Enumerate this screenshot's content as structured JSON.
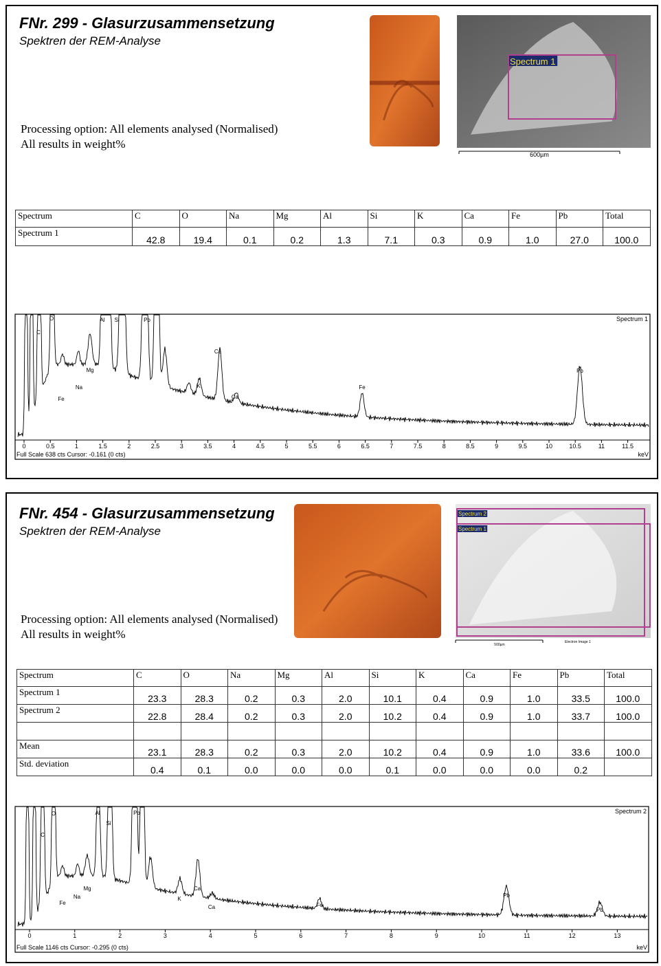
{
  "panels": [
    {
      "title": "FNr. 299 - Glasurzusammensetzung",
      "subtitle": "Spektren der REM-Analyse",
      "processing": [
        "Processing option: All elements analysed (Normalised)",
        "All results in weight%"
      ],
      "image_labels": [
        "Spectrum 1"
      ],
      "scale_label": "600µm",
      "table": {
        "header": [
          "Spectrum",
          "C",
          "O",
          "Na",
          "Mg",
          "Al",
          "Si",
          "K",
          "Ca",
          "Fe",
          "Pb",
          "Total"
        ],
        "rows": [
          [
            "Spectrum 1",
            "42.8",
            "19.4",
            "0.1",
            "0.2",
            "1.3",
            "7.1",
            "0.3",
            "0.9",
            "1.0",
            "27.0",
            "100.0"
          ]
        ]
      },
      "spectrum": {
        "label": "Spectrum 1",
        "peaks": [
          "C",
          "O",
          "Al",
          "Si",
          "Pb",
          "Mg",
          "Na",
          "Fe",
          "K",
          "Ca",
          "Ca",
          "Fe",
          "Pb"
        ],
        "ticks": [
          0,
          0.5,
          1,
          1.5,
          2,
          2.5,
          3,
          3.5,
          4,
          4.5,
          5,
          5.5,
          6,
          6.5,
          7,
          7.5,
          8,
          8.5,
          9,
          9.5,
          10,
          10.5,
          11,
          11.5
        ],
        "unit": "keV",
        "footer": "Full Scale 638 cts Cursor: -0.161  (0 cts)"
      }
    },
    {
      "title": "FNr. 454 - Glasurzusammensetzung",
      "subtitle": "Spektren der REM-Analyse",
      "processing": [
        "Processing option: All elements analysed (Normalised)",
        "All results in weight%"
      ],
      "image_labels": [
        "Spectrum 2",
        "Spectrum 1"
      ],
      "scale_label": "500µm",
      "image_caption": "Electron Image 1",
      "table": {
        "header": [
          "Spectrum",
          "C",
          "O",
          "Na",
          "Mg",
          "Al",
          "Si",
          "K",
          "Ca",
          "Fe",
          "Pb",
          "Total"
        ],
        "rows": [
          [
            "Spectrum 1",
            "23.3",
            "28.3",
            "0.2",
            "0.3",
            "2.0",
            "10.1",
            "0.4",
            "0.9",
            "1.0",
            "33.5",
            "100.0"
          ],
          [
            "Spectrum 2",
            "22.8",
            "28.4",
            "0.2",
            "0.3",
            "2.0",
            "10.2",
            "0.4",
            "0.9",
            "1.0",
            "33.7",
            "100.0"
          ],
          [
            "Mean",
            "23.1",
            "28.3",
            "0.2",
            "0.3",
            "2.0",
            "10.2",
            "0.4",
            "0.9",
            "1.0",
            "33.6",
            "100.0"
          ],
          [
            "Std. deviation",
            "0.4",
            "0.1",
            "0.0",
            "0.0",
            "0.0",
            "0.1",
            "0.0",
            "0.0",
            "0.0",
            "0.2"
          ]
        ]
      },
      "spectrum": {
        "label": "Spectrum 2",
        "peaks": [
          "C",
          "O",
          "Al",
          "Si",
          "Pb",
          "Mg",
          "Na",
          "Fe",
          "K",
          "Ca",
          "Ca",
          "Fe",
          "Pb",
          "Pb"
        ],
        "ticks": [
          0,
          1,
          2,
          3,
          4,
          5,
          6,
          7,
          8,
          9,
          10,
          11,
          12,
          13
        ],
        "unit": "keV",
        "footer": "Full Scale 1146 cts Cursor: -0.295  (0 cts)"
      }
    }
  ]
}
